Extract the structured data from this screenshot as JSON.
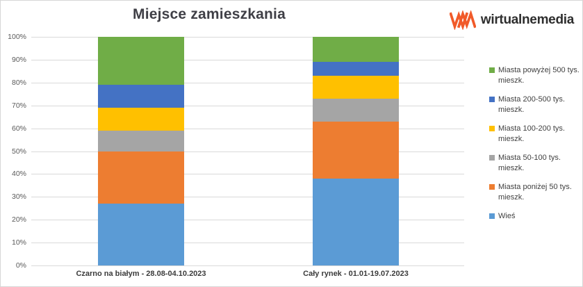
{
  "logo": {
    "text": "wirtualnemedia",
    "mark_color": "#f15a29"
  },
  "colors": {
    "title_text": "#3f3f46",
    "axis_text": "#595959",
    "gridline": "#d9d9d9",
    "legend_text": "#404040"
  },
  "chart_data": {
    "type": "bar",
    "stacked": true,
    "title": "Miejsce zamieszkania",
    "xlabel": "",
    "ylabel": "",
    "ylim": [
      0,
      100
    ],
    "grid": true,
    "legend_position": "right",
    "y_ticks": [
      "0%",
      "10%",
      "20%",
      "30%",
      "40%",
      "50%",
      "60%",
      "70%",
      "80%",
      "90%",
      "100%"
    ],
    "categories": [
      "Czarno na białym - 28.08-04.10.2023",
      "Cały rynek - 01.01-19.07.2023"
    ],
    "series": [
      {
        "name": "Wieś",
        "color": "#5b9bd5",
        "values": [
          27,
          38
        ]
      },
      {
        "name": "Miasta poniżej 50 tys. mieszk.",
        "color": "#ed7d31",
        "values": [
          23,
          25
        ]
      },
      {
        "name": "Miasta 50-100 tys. mieszk.",
        "color": "#a5a5a5",
        "values": [
          9,
          10
        ]
      },
      {
        "name": "Miasta 100-200 tys. mieszk.",
        "color": "#ffc000",
        "values": [
          10,
          10
        ]
      },
      {
        "name": "Miasta 200-500 tys. mieszk.",
        "color": "#4472c4",
        "values": [
          10,
          6
        ]
      },
      {
        "name": "Miasta powyżej 500 tys. mieszk.",
        "color": "#70ad47",
        "values": [
          21,
          11
        ]
      }
    ],
    "legend_order_top_to_bottom": [
      "Miasta powyżej 500 tys. mieszk.",
      "Miasta 200-500 tys. mieszk.",
      "Miasta 100-200 tys. mieszk.",
      "Miasta 50-100 tys. mieszk.",
      "Miasta poniżej 50 tys. mieszk.",
      "Wieś"
    ]
  }
}
